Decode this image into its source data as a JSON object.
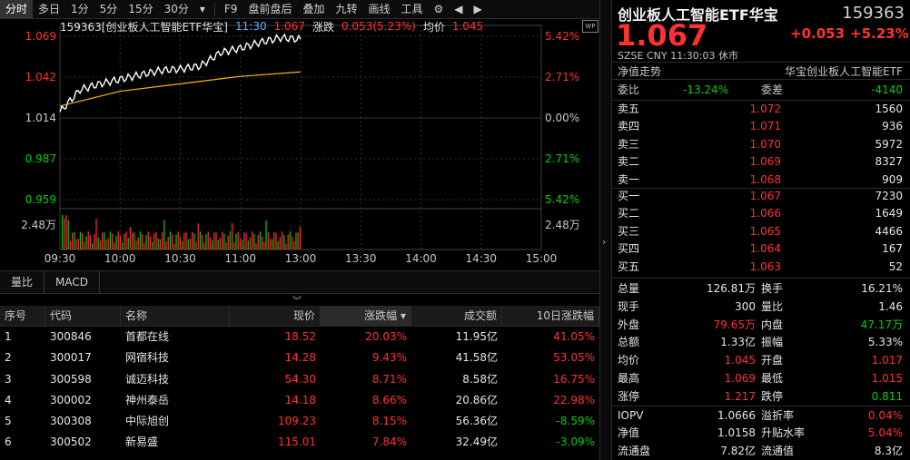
{
  "toolbar": {
    "items": [
      "分时",
      "多日",
      "1分",
      "5分",
      "15分",
      "30分",
      "▾",
      "F9",
      "盘前盘后",
      "叠加",
      "九转",
      "画线",
      "工具"
    ]
  },
  "info_bar": {
    "code_name": "159363[创业板人工智能ETF华宝]",
    "time": "11:30",
    "price": "1.067",
    "chg_label": "涨跌",
    "chg_value": "0.053(5.23%)",
    "avg_label": "均价",
    "avg_value": "1.045"
  },
  "axes": {
    "left_ticks": [
      "1.069",
      "1.042",
      "1.014",
      "0.987",
      "0.959"
    ],
    "right_ticks": [
      "5.42%",
      "2.71%",
      "0.00%",
      "2.71%",
      "5.42%"
    ],
    "vol_tick": "2.48万",
    "time_ticks": [
      "09:30",
      "10:00",
      "10:30",
      "11:00",
      "13:00",
      "13:30",
      "14:00",
      "14:30",
      "15:00"
    ]
  },
  "chart_data": {
    "type": "line",
    "x_range": [
      "09:30",
      "15:00"
    ],
    "ylim": [
      0.959,
      1.069
    ],
    "series": [
      {
        "x": [
          "09:30",
          "09:40",
          "09:50",
          "10:00",
          "10:10",
          "10:20",
          "10:30",
          "10:40",
          "10:50",
          "11:00",
          "11:10",
          "11:20",
          "11:30"
        ],
        "values": [
          1.018,
          1.033,
          1.037,
          1.04,
          1.043,
          1.046,
          1.047,
          1.049,
          1.058,
          1.061,
          1.065,
          1.068,
          1.067
        ]
      },
      {
        "x": [
          "09:30",
          "10:00",
          "10:30",
          "11:00",
          "11:30"
        ],
        "values": [
          1.022,
          1.032,
          1.037,
          1.042,
          1.045
        ]
      }
    ]
  },
  "chart_tabs": [
    "量比",
    "MACD"
  ],
  "table": {
    "headers": [
      "序号",
      "代码",
      "名称",
      "现价",
      "涨跌幅 ▾",
      "成交额",
      "10日涨跌幅"
    ],
    "rows": [
      {
        "idx": "1",
        "code": "300846",
        "name": "首都在线",
        "price": "18.52",
        "pct": "20.03%",
        "amount": "11.95亿",
        "pct10": "41.05%",
        "pct10_color": "red"
      },
      {
        "idx": "2",
        "code": "300017",
        "name": "网宿科技",
        "price": "14.28",
        "pct": "9.43%",
        "amount": "41.58亿",
        "pct10": "53.05%",
        "pct10_color": "red"
      },
      {
        "idx": "3",
        "code": "300598",
        "name": "诚迈科技",
        "price": "54.30",
        "pct": "8.71%",
        "amount": "8.58亿",
        "pct10": "16.75%",
        "pct10_color": "red"
      },
      {
        "idx": "4",
        "code": "300002",
        "name": "神州泰岳",
        "price": "14.18",
        "pct": "8.66%",
        "amount": "20.86亿",
        "pct10": "22.98%",
        "pct10_color": "red"
      },
      {
        "idx": "5",
        "code": "300308",
        "name": "中际旭创",
        "price": "109.23",
        "pct": "8.15%",
        "amount": "56.36亿",
        "pct10": "-8.59%",
        "pct10_color": "green"
      },
      {
        "idx": "6",
        "code": "300502",
        "name": "新易盛",
        "price": "115.01",
        "pct": "7.84%",
        "amount": "32.49亿",
        "pct10": "-3.09%",
        "pct10_color": "green"
      }
    ]
  },
  "quote": {
    "title": "创业板人工智能ETF华宝",
    "code": "159363",
    "price": "1.067",
    "change": "+0.053",
    "pct": "+5.23%",
    "meta": "SZSE  CNY  11:30:03  休市",
    "nav_left": "净值走势",
    "nav_right": "华宝创业板人工智能ETF",
    "weibi_label": "委比",
    "weibi_value": "-13.24%",
    "weicha_label": "委差",
    "weicha_value": "-4140",
    "asks": [
      {
        "label": "卖五",
        "price": "1.072",
        "vol": "1560"
      },
      {
        "label": "卖四",
        "price": "1.071",
        "vol": "936"
      },
      {
        "label": "卖三",
        "price": "1.070",
        "vol": "5972"
      },
      {
        "label": "卖二",
        "price": "1.069",
        "vol": "8327"
      },
      {
        "label": "卖一",
        "price": "1.068",
        "vol": "909"
      }
    ],
    "bids": [
      {
        "label": "买一",
        "price": "1.067",
        "vol": "7230"
      },
      {
        "label": "买二",
        "price": "1.066",
        "vol": "1649"
      },
      {
        "label": "买三",
        "price": "1.065",
        "vol": "4466"
      },
      {
        "label": "买四",
        "price": "1.064",
        "vol": "167"
      },
      {
        "label": "买五",
        "price": "1.063",
        "vol": "52"
      }
    ],
    "stats": [
      {
        "l1": "总量",
        "v1": "126.81万",
        "c1": "white",
        "l2": "换手",
        "v2": "16.21%",
        "c2": "white"
      },
      {
        "l1": "现手",
        "v1": "300",
        "c1": "white",
        "l2": "量比",
        "v2": "1.46",
        "c2": "white"
      },
      {
        "l1": "外盘",
        "v1": "79.65万",
        "c1": "red",
        "l2": "内盘",
        "v2": "47.17万",
        "c2": "green"
      },
      {
        "l1": "总额",
        "v1": "1.33亿",
        "c1": "white",
        "l2": "振幅",
        "v2": "5.33%",
        "c2": "white"
      },
      {
        "l1": "均价",
        "v1": "1.045",
        "c1": "red",
        "l2": "开盘",
        "v2": "1.017",
        "c2": "red"
      },
      {
        "l1": "最高",
        "v1": "1.069",
        "c1": "red",
        "l2": "最低",
        "v2": "1.015",
        "c2": "red"
      },
      {
        "l1": "涨停",
        "v1": "1.217",
        "c1": "red",
        "l2": "跌停",
        "v2": "0.811",
        "c2": "green"
      }
    ],
    "stats2": [
      {
        "l1": "IOPV",
        "v1": "1.0666",
        "c1": "white",
        "l2": "溢折率",
        "v2": "0.04%",
        "c2": "red"
      },
      {
        "l1": "净值",
        "v1": "1.0158",
        "c1": "white",
        "l2": "升贴水率",
        "v2": "5.04%",
        "c2": "red"
      },
      {
        "l1": "流通盘",
        "v1": "7.82亿",
        "c1": "white",
        "l2": "流通值",
        "v2": "8.3亿",
        "c2": "white"
      }
    ]
  }
}
